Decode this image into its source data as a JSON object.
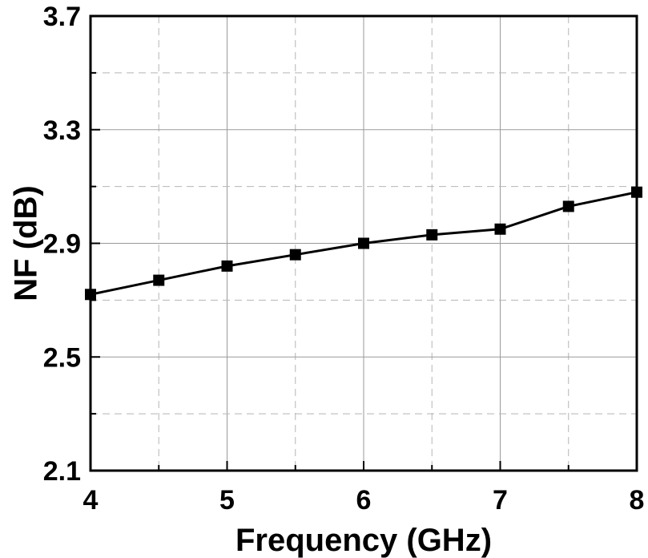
{
  "chart_data": {
    "type": "line",
    "title": "",
    "xlabel": "Frequency (GHz)",
    "ylabel": "NF (dB)",
    "xlim": [
      4,
      8
    ],
    "ylim": [
      2.1,
      3.7
    ],
    "x_ticks": [
      4,
      5,
      6,
      7,
      8
    ],
    "x_tick_labels": [
      "4",
      "5",
      "6",
      "7",
      "8"
    ],
    "y_ticks": [
      2.1,
      2.5,
      2.9,
      3.3,
      3.7
    ],
    "y_tick_labels": [
      "2.1",
      "2.5",
      "2.9",
      "3.3",
      "3.7"
    ],
    "grid": true,
    "grid_style": "major solid, minor dashed",
    "legend": "none",
    "series": [
      {
        "marker": "square",
        "color": "#000000",
        "x": [
          4,
          4.5,
          5,
          5.5,
          6,
          6.5,
          7,
          7.5,
          8
        ],
        "y": [
          2.72,
          2.77,
          2.82,
          2.86,
          2.9,
          2.93,
          2.95,
          3.03,
          3.08
        ]
      }
    ]
  }
}
